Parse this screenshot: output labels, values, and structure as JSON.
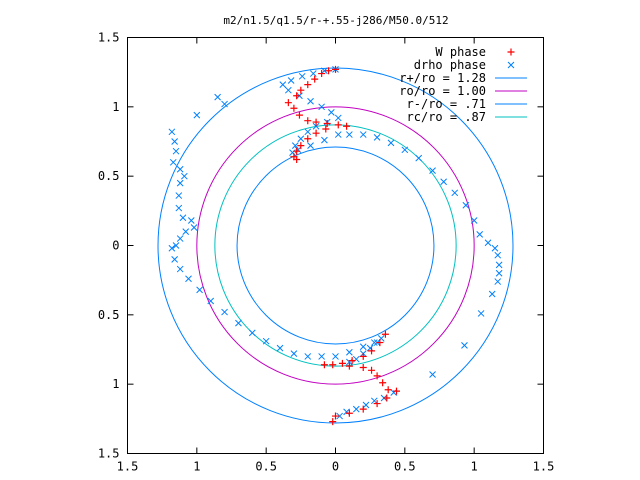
{
  "chart_data": {
    "type": "scatter",
    "title": "m2/n1.5/q1.5/r-+.55-j286/M50.0/512",
    "xlabel": "",
    "ylabel": "",
    "xlim": [
      -1.5,
      1.5
    ],
    "ylim": [
      -1.5,
      1.5
    ],
    "x_tick_labels": [
      "1.5",
      "1",
      "0.5",
      "0",
      "0.5",
      "1",
      "1.5"
    ],
    "y_tick_labels": [
      "1.5",
      "1",
      "0.5",
      "0",
      "0.5",
      "1",
      "1.5"
    ],
    "grid": false,
    "legend_position": "top-right",
    "legend": [
      {
        "label": "W phase",
        "color": "#ff0000",
        "marker": "plus"
      },
      {
        "label": "drho phase",
        "color": "#0080ff",
        "marker": "x"
      },
      {
        "label": "r+/ro = 1.28",
        "color": "#0080ff",
        "marker": "line"
      },
      {
        "label": "ro/ro = 1.00",
        "color": "#c000c0",
        "marker": "line"
      },
      {
        "label": "r-/ro = .71",
        "color": "#0080ff",
        "marker": "line"
      },
      {
        "label": "rc/ro = .87",
        "color": "#00c0c0",
        "marker": "line"
      }
    ],
    "circles": [
      {
        "radius": 1.28,
        "color": "#0080ff"
      },
      {
        "radius": 1.0,
        "color": "#c000c0"
      },
      {
        "radius": 0.71,
        "color": "#0080ff"
      },
      {
        "radius": 0.87,
        "color": "#00c0c0"
      }
    ],
    "series": [
      {
        "name": "W phase",
        "color": "#ff0000",
        "marker": "plus",
        "points": [
          [
            0.0,
            1.27
          ],
          [
            -0.05,
            1.26
          ],
          [
            -0.1,
            1.24
          ],
          [
            -0.15,
            1.2
          ],
          [
            -0.2,
            1.16
          ],
          [
            -0.25,
            1.12
          ],
          [
            -0.28,
            1.08
          ],
          [
            -0.34,
            1.03
          ],
          [
            -0.3,
            0.99
          ],
          [
            -0.26,
            0.94
          ],
          [
            -0.2,
            0.9
          ],
          [
            -0.14,
            0.89
          ],
          [
            -0.06,
            0.88
          ],
          [
            0.02,
            0.87
          ],
          [
            0.08,
            0.86
          ],
          [
            -0.07,
            0.84
          ],
          [
            -0.14,
            0.81
          ],
          [
            -0.2,
            0.77
          ],
          [
            -0.25,
            0.72
          ],
          [
            -0.28,
            0.68
          ],
          [
            -0.3,
            0.64
          ],
          [
            -0.28,
            0.62
          ],
          [
            0.36,
            -0.64
          ],
          [
            0.32,
            -0.7
          ],
          [
            0.26,
            -0.76
          ],
          [
            0.2,
            -0.8
          ],
          [
            0.12,
            -0.83
          ],
          [
            0.05,
            -0.85
          ],
          [
            -0.02,
            -0.86
          ],
          [
            -0.08,
            -0.86
          ],
          [
            0.1,
            -0.87
          ],
          [
            0.2,
            -0.88
          ],
          [
            0.26,
            -0.9
          ],
          [
            0.3,
            -0.94
          ],
          [
            0.34,
            -0.99
          ],
          [
            0.38,
            -1.04
          ],
          [
            0.44,
            -1.05
          ],
          [
            0.37,
            -1.1
          ],
          [
            0.3,
            -1.14
          ],
          [
            0.2,
            -1.18
          ],
          [
            0.1,
            -1.21
          ],
          [
            0.0,
            -1.23
          ],
          [
            -0.02,
            -1.27
          ]
        ]
      },
      {
        "name": "drho phase",
        "color": "#0080ff",
        "marker": "x",
        "points": [
          [
            0.0,
            1.27
          ],
          [
            -0.08,
            1.26
          ],
          [
            -0.16,
            1.24
          ],
          [
            -0.24,
            1.22
          ],
          [
            -0.32,
            1.19
          ],
          [
            -0.38,
            1.16
          ],
          [
            -0.34,
            1.12
          ],
          [
            -0.26,
            1.08
          ],
          [
            -0.18,
            1.04
          ],
          [
            -0.1,
            1.0
          ],
          [
            -0.03,
            0.96
          ],
          [
            0.02,
            0.92
          ],
          [
            -0.06,
            0.89
          ],
          [
            -0.14,
            0.86
          ],
          [
            -0.2,
            0.82
          ],
          [
            -0.25,
            0.77
          ],
          [
            -0.29,
            0.72
          ],
          [
            -0.31,
            0.67
          ],
          [
            -0.27,
            0.69
          ],
          [
            -0.18,
            0.72
          ],
          [
            -0.08,
            0.76
          ],
          [
            0.02,
            0.8
          ],
          [
            0.1,
            0.8
          ],
          [
            0.2,
            0.8
          ],
          [
            0.3,
            0.78
          ],
          [
            0.4,
            0.74
          ],
          [
            0.5,
            0.69
          ],
          [
            0.6,
            0.63
          ],
          [
            0.7,
            0.54
          ],
          [
            0.78,
            0.46
          ],
          [
            0.86,
            0.38
          ],
          [
            0.94,
            0.29
          ],
          [
            1.0,
            0.18
          ],
          [
            1.04,
            0.08
          ],
          [
            1.1,
            0.02
          ],
          [
            1.15,
            -0.02
          ],
          [
            1.17,
            -0.07
          ],
          [
            1.18,
            -0.14
          ],
          [
            1.18,
            -0.2
          ],
          [
            1.17,
            -0.26
          ],
          [
            1.13,
            -0.35
          ],
          [
            1.05,
            -0.49
          ],
          [
            0.93,
            -0.72
          ],
          [
            0.7,
            -0.93
          ],
          [
            -1.15,
            0.0
          ],
          [
            -1.12,
            0.05
          ],
          [
            -1.08,
            0.1
          ],
          [
            -1.02,
            0.13
          ],
          [
            -1.04,
            0.18
          ],
          [
            -1.1,
            0.2
          ],
          [
            -1.13,
            0.27
          ],
          [
            -1.13,
            0.36
          ],
          [
            -1.12,
            0.45
          ],
          [
            -1.09,
            0.5
          ],
          [
            -1.12,
            0.55
          ],
          [
            -1.17,
            0.6
          ],
          [
            -1.15,
            0.68
          ],
          [
            -1.16,
            0.75
          ],
          [
            -1.18,
            0.82
          ],
          [
            -1.0,
            0.94
          ],
          [
            -0.8,
            1.02
          ],
          [
            -0.85,
            1.07
          ],
          [
            -1.18,
            -0.02
          ],
          [
            -1.16,
            -0.1
          ],
          [
            -1.12,
            -0.17
          ],
          [
            -1.06,
            -0.24
          ],
          [
            -0.98,
            -0.32
          ],
          [
            -0.9,
            -0.4
          ],
          [
            -0.8,
            -0.48
          ],
          [
            -0.7,
            -0.56
          ],
          [
            -0.6,
            -0.63
          ],
          [
            -0.5,
            -0.69
          ],
          [
            -0.4,
            -0.74
          ],
          [
            -0.3,
            -0.78
          ],
          [
            -0.2,
            -0.8
          ],
          [
            -0.1,
            -0.8
          ],
          [
            0.0,
            -0.8
          ],
          [
            0.1,
            -0.77
          ],
          [
            0.2,
            -0.73
          ],
          [
            0.28,
            -0.7
          ],
          [
            0.33,
            -0.67
          ],
          [
            0.3,
            -0.7
          ],
          [
            0.25,
            -0.74
          ],
          [
            0.2,
            -0.78
          ],
          [
            0.15,
            -0.82
          ],
          [
            0.1,
            -0.84
          ],
          [
            0.03,
            -1.23
          ],
          [
            0.08,
            -1.2
          ],
          [
            0.15,
            -1.18
          ],
          [
            0.22,
            -1.15
          ],
          [
            0.28,
            -1.12
          ],
          [
            0.35,
            -1.1
          ],
          [
            0.42,
            -1.06
          ]
        ]
      }
    ]
  }
}
